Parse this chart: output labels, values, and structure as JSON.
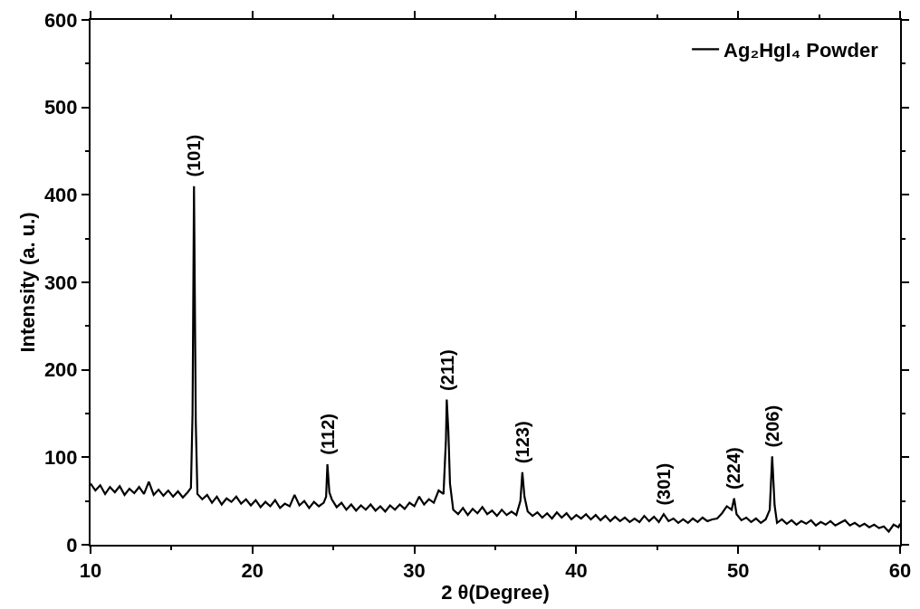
{
  "chart_data": {
    "type": "line",
    "xlabel": "2 θ(Degree)",
    "ylabel": "Intensity (a. u.)",
    "xlim": [
      10,
      60
    ],
    "ylim": [
      0,
      600
    ],
    "xticks": [
      10,
      20,
      30,
      40,
      50,
      60
    ],
    "yticks": [
      0,
      100,
      200,
      300,
      400,
      500,
      600
    ],
    "legend": "top right",
    "marker": "none",
    "line_style": "solid",
    "series": [
      {
        "name": "Ag₂HgI₄ Powder",
        "color": "#000000",
        "x": [
          10.0,
          10.3,
          10.6,
          10.9,
          11.2,
          11.5,
          11.8,
          12.1,
          12.4,
          12.7,
          13.0,
          13.3,
          13.6,
          13.9,
          14.2,
          14.5,
          14.8,
          15.1,
          15.4,
          15.7,
          16.0,
          16.2,
          16.3,
          16.39,
          16.5,
          16.6,
          16.9,
          17.2,
          17.5,
          17.8,
          18.1,
          18.4,
          18.7,
          19.0,
          19.3,
          19.6,
          19.9,
          20.2,
          20.5,
          20.8,
          21.1,
          21.4,
          21.7,
          22.0,
          22.3,
          22.6,
          22.9,
          23.2,
          23.5,
          23.8,
          24.1,
          24.4,
          24.55,
          24.63,
          24.75,
          24.9,
          25.2,
          25.5,
          25.8,
          26.1,
          26.4,
          26.7,
          27.0,
          27.3,
          27.6,
          27.9,
          28.2,
          28.5,
          28.8,
          29.1,
          29.4,
          29.7,
          30.0,
          30.3,
          30.6,
          30.9,
          31.2,
          31.5,
          31.8,
          31.95,
          32.0,
          32.1,
          32.2,
          32.4,
          32.7,
          33.0,
          33.3,
          33.6,
          33.9,
          34.2,
          34.5,
          34.8,
          35.1,
          35.4,
          35.7,
          36.0,
          36.3,
          36.55,
          36.67,
          36.8,
          37.0,
          37.3,
          37.6,
          37.9,
          38.2,
          38.5,
          38.8,
          39.1,
          39.4,
          39.7,
          40.0,
          40.3,
          40.6,
          40.9,
          41.2,
          41.5,
          41.8,
          42.1,
          42.4,
          42.7,
          43.0,
          43.3,
          43.6,
          43.9,
          44.2,
          44.5,
          44.8,
          45.1,
          45.4,
          45.7,
          46.0,
          46.3,
          46.6,
          46.9,
          47.2,
          47.5,
          47.8,
          48.1,
          48.4,
          48.7,
          49.0,
          49.3,
          49.6,
          49.75,
          49.9,
          50.2,
          50.5,
          50.8,
          51.1,
          51.4,
          51.7,
          51.95,
          52.1,
          52.25,
          52.4,
          52.7,
          53.0,
          53.3,
          53.6,
          53.9,
          54.2,
          54.5,
          54.8,
          55.1,
          55.4,
          55.7,
          56.0,
          56.3,
          56.6,
          56.9,
          57.2,
          57.5,
          57.8,
          58.1,
          58.4,
          58.7,
          59.0,
          59.3,
          59.6,
          59.9,
          60.0
        ],
        "values": [
          70,
          62,
          68,
          58,
          66,
          60,
          67,
          57,
          64,
          59,
          66,
          58,
          72,
          57,
          63,
          56,
          62,
          55,
          61,
          54,
          60,
          65,
          150,
          410,
          140,
          58,
          52,
          57,
          48,
          55,
          46,
          53,
          49,
          55,
          47,
          52,
          45,
          51,
          43,
          49,
          44,
          51,
          42,
          47,
          44,
          57,
          45,
          50,
          42,
          49,
          44,
          48,
          55,
          92,
          60,
          52,
          43,
          48,
          40,
          46,
          39,
          45,
          40,
          46,
          39,
          44,
          38,
          45,
          40,
          46,
          41,
          48,
          44,
          55,
          46,
          52,
          48,
          62,
          58,
          120,
          166,
          130,
          70,
          40,
          35,
          42,
          34,
          41,
          36,
          43,
          35,
          39,
          33,
          40,
          34,
          38,
          34,
          50,
          83,
          55,
          38,
          33,
          37,
          31,
          36,
          30,
          37,
          31,
          36,
          29,
          34,
          30,
          35,
          29,
          34,
          28,
          33,
          27,
          32,
          27,
          31,
          26,
          30,
          26,
          33,
          27,
          32,
          26,
          35,
          27,
          30,
          25,
          29,
          25,
          30,
          26,
          31,
          27,
          29,
          30,
          36,
          44,
          40,
          53,
          35,
          28,
          31,
          26,
          30,
          25,
          29,
          40,
          101,
          45,
          25,
          29,
          24,
          28,
          23,
          27,
          24,
          28,
          22,
          26,
          23,
          27,
          22,
          25,
          28,
          22,
          25,
          21,
          24,
          20,
          23,
          19,
          21,
          15,
          23,
          20,
          24
        ]
      }
    ],
    "annotations": [
      {
        "text": "(101)",
        "x": 16.39,
        "y": 410
      },
      {
        "text": "(112)",
        "x": 24.63,
        "y": 92
      },
      {
        "text": "(211)",
        "x": 32.0,
        "y": 166
      },
      {
        "text": "(123)",
        "x": 36.67,
        "y": 83
      },
      {
        "text": "(301)",
        "x": 45.4,
        "y": 35
      },
      {
        "text": "(224)",
        "x": 49.75,
        "y": 53
      },
      {
        "text": "(206)",
        "x": 52.1,
        "y": 101
      }
    ]
  }
}
